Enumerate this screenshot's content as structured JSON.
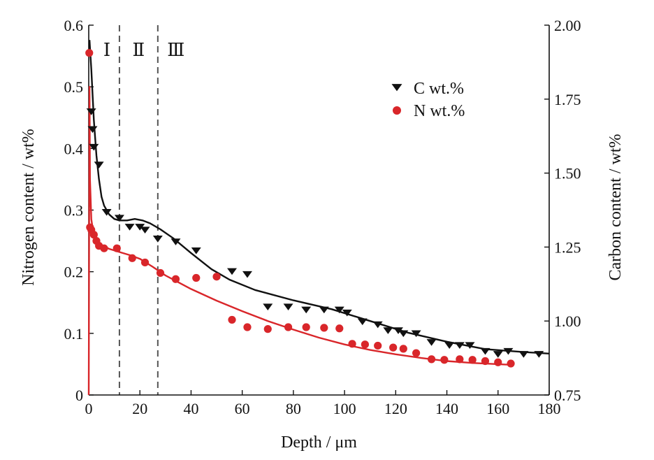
{
  "chart_data": {
    "type": "scatter",
    "title": "",
    "xlabel": "Depth / μm",
    "ylabel_left": "Nitrogen content / wt%",
    "ylabel_right": "Carbon content / wt%",
    "xlim": [
      0,
      180
    ],
    "ylim_left": [
      0,
      0.6
    ],
    "ylim_right": [
      0.75,
      2.0
    ],
    "x_ticks": [
      "0",
      "20",
      "40",
      "60",
      "80",
      "100",
      "120",
      "140",
      "160",
      "180"
    ],
    "y_left_ticks": [
      "0",
      "0.1",
      "0.2",
      "0.3",
      "0.4",
      "0.5",
      "0.6"
    ],
    "y_right_ticks": [
      "0.75",
      "1.00",
      "1.25",
      "1.50",
      "1.75",
      "2.00"
    ],
    "colors": {
      "carbon": "#111111",
      "nitrogen": "#d9262a"
    },
    "regions": [
      {
        "label": "Ⅰ",
        "x_start": 0,
        "x_end": 12
      },
      {
        "label": "Ⅱ",
        "x_start": 12,
        "x_end": 27
      },
      {
        "label": "Ⅲ",
        "x_start": 27,
        "x_end": null
      }
    ],
    "legend": {
      "position": "top-right",
      "entries": [
        "C wt.%",
        "N wt.%"
      ]
    },
    "series": [
      {
        "name": "C wt.%",
        "axis": "right",
        "marker": "triangle-down",
        "points": [
          [
            1,
            1.71
          ],
          [
            1.5,
            1.65
          ],
          [
            2,
            1.59
          ],
          [
            4,
            1.53
          ],
          [
            7,
            1.37
          ],
          [
            12,
            1.35
          ],
          [
            16,
            1.32
          ],
          [
            20,
            1.32
          ],
          [
            22,
            1.31
          ],
          [
            27,
            1.28
          ],
          [
            34,
            1.27
          ],
          [
            42,
            1.24
          ],
          [
            56,
            1.17
          ],
          [
            62,
            1.16
          ],
          [
            70,
            1.05
          ],
          [
            78,
            1.05
          ],
          [
            85,
            1.04
          ],
          [
            92,
            1.04
          ],
          [
            98,
            1.04
          ],
          [
            101,
            1.03
          ],
          [
            107,
            1.0
          ],
          [
            113,
            0.99
          ],
          [
            117,
            0.97
          ],
          [
            121,
            0.97
          ],
          [
            123,
            0.96
          ],
          [
            128,
            0.96
          ],
          [
            134,
            0.93
          ],
          [
            141,
            0.92
          ],
          [
            145,
            0.92
          ],
          [
            149,
            0.92
          ],
          [
            155,
            0.9
          ],
          [
            160,
            0.89
          ],
          [
            164,
            0.9
          ],
          [
            170,
            0.89
          ],
          [
            176,
            0.89
          ]
        ],
        "fit_curve": [
          [
            0.3,
            1.95
          ],
          [
            1,
            1.85
          ],
          [
            2,
            1.68
          ],
          [
            3,
            1.56
          ],
          [
            4,
            1.48
          ],
          [
            5,
            1.42
          ],
          [
            6,
            1.39
          ],
          [
            8,
            1.36
          ],
          [
            10,
            1.345
          ],
          [
            12,
            1.34
          ],
          [
            15,
            1.34
          ],
          [
            18,
            1.345
          ],
          [
            21,
            1.34
          ],
          [
            24,
            1.33
          ],
          [
            28,
            1.31
          ],
          [
            33,
            1.28
          ],
          [
            40,
            1.23
          ],
          [
            48,
            1.175
          ],
          [
            55,
            1.14
          ],
          [
            65,
            1.105
          ],
          [
            80,
            1.07
          ],
          [
            95,
            1.04
          ],
          [
            110,
            1.0
          ],
          [
            125,
            0.96
          ],
          [
            140,
            0.93
          ],
          [
            155,
            0.905
          ],
          [
            170,
            0.895
          ],
          [
            180,
            0.89
          ]
        ]
      },
      {
        "name": "N wt.%",
        "axis": "left",
        "marker": "circle",
        "points": [
          [
            0.2,
            0.555
          ],
          [
            0.5,
            0.272
          ],
          [
            1,
            0.268
          ],
          [
            2,
            0.26
          ],
          [
            3,
            0.25
          ],
          [
            4,
            0.242
          ],
          [
            6,
            0.238
          ],
          [
            11,
            0.238
          ],
          [
            17,
            0.222
          ],
          [
            22,
            0.215
          ],
          [
            28,
            0.198
          ],
          [
            34,
            0.188
          ],
          [
            42,
            0.19
          ],
          [
            50,
            0.192
          ],
          [
            56,
            0.122
          ],
          [
            62,
            0.11
          ],
          [
            70,
            0.107
          ],
          [
            78,
            0.11
          ],
          [
            85,
            0.11
          ],
          [
            92,
            0.109
          ],
          [
            98,
            0.108
          ],
          [
            103,
            0.083
          ],
          [
            108,
            0.082
          ],
          [
            113,
            0.08
          ],
          [
            119,
            0.077
          ],
          [
            123,
            0.075
          ],
          [
            128,
            0.068
          ],
          [
            134,
            0.058
          ],
          [
            139,
            0.057
          ],
          [
            145,
            0.058
          ],
          [
            150,
            0.057
          ],
          [
            155,
            0.055
          ],
          [
            160,
            0.053
          ],
          [
            165,
            0.051
          ]
        ],
        "fit_curve": [
          [
            0,
            0.0
          ],
          [
            0.3,
            0.5
          ],
          [
            0.5,
            0.35
          ],
          [
            1,
            0.285
          ],
          [
            2,
            0.258
          ],
          [
            4,
            0.245
          ],
          [
            8,
            0.237
          ],
          [
            12,
            0.232
          ],
          [
            16,
            0.227
          ],
          [
            20,
            0.221
          ],
          [
            25,
            0.208
          ],
          [
            30,
            0.194
          ],
          [
            40,
            0.172
          ],
          [
            50,
            0.153
          ],
          [
            60,
            0.136
          ],
          [
            70,
            0.12
          ],
          [
            80,
            0.106
          ],
          [
            90,
            0.093
          ],
          [
            100,
            0.082
          ],
          [
            110,
            0.073
          ],
          [
            120,
            0.066
          ],
          [
            130,
            0.06
          ],
          [
            140,
            0.055
          ],
          [
            150,
            0.052
          ],
          [
            160,
            0.05
          ],
          [
            165,
            0.049
          ]
        ]
      }
    ]
  }
}
